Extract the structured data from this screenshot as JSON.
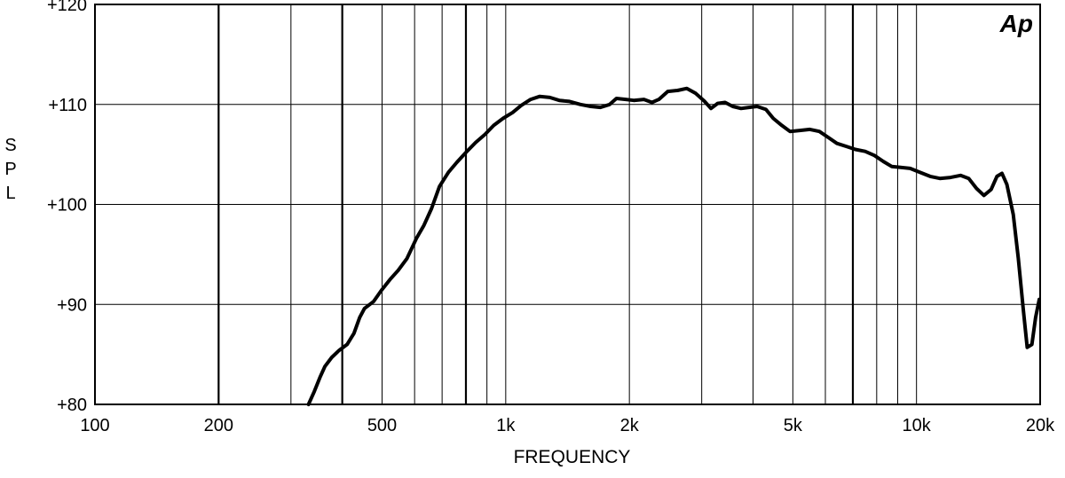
{
  "chart_data": {
    "type": "line",
    "title": "",
    "xlabel": "FREQUENCY",
    "ylabel": "SPL",
    "x_scale": "log",
    "xlim": [
      100,
      20000
    ],
    "ylim": [
      80,
      120
    ],
    "x_ticks": [
      {
        "value": 100,
        "label": "100"
      },
      {
        "value": 200,
        "label": "200"
      },
      {
        "value": 500,
        "label": "500"
      },
      {
        "value": 1000,
        "label": "1k"
      },
      {
        "value": 2000,
        "label": "2k"
      },
      {
        "value": 5000,
        "label": "5k"
      },
      {
        "value": 10000,
        "label": "10k"
      },
      {
        "value": 20000,
        "label": "20k"
      }
    ],
    "y_ticks": [
      {
        "value": 120,
        "label": "+120"
      },
      {
        "value": 110,
        "label": "+110"
      },
      {
        "value": 100,
        "label": "+100"
      },
      {
        "value": 90,
        "label": "+90"
      },
      {
        "value": 80,
        "label": "+80"
      }
    ],
    "x_gridlines": [
      200,
      300,
      400,
      500,
      600,
      700,
      800,
      900,
      1000,
      2000,
      3000,
      4000,
      5000,
      6000,
      7000,
      8000,
      9000,
      10000
    ],
    "x_gridlines_bold": [
      200,
      400,
      800,
      7000
    ],
    "y_gridlines": [
      90,
      100,
      110
    ],
    "grid": true,
    "logo": "Ap",
    "series": [
      {
        "color": "#000000",
        "points": [
          [
            331,
            80.0
          ],
          [
            342,
            81.3
          ],
          [
            353,
            82.7
          ],
          [
            363,
            83.8
          ],
          [
            377,
            84.7
          ],
          [
            393,
            85.4
          ],
          [
            411,
            86.0
          ],
          [
            427,
            87.1
          ],
          [
            441,
            88.7
          ],
          [
            453,
            89.6
          ],
          [
            477,
            90.3
          ],
          [
            498,
            91.4
          ],
          [
            523,
            92.5
          ],
          [
            547,
            93.4
          ],
          [
            575,
            94.6
          ],
          [
            606,
            96.6
          ],
          [
            632,
            97.9
          ],
          [
            660,
            99.6
          ],
          [
            690,
            101.8
          ],
          [
            725,
            103.2
          ],
          [
            760,
            104.2
          ],
          [
            800,
            105.2
          ],
          [
            845,
            106.2
          ],
          [
            890,
            107.0
          ],
          [
            935,
            107.9
          ],
          [
            985,
            108.6
          ],
          [
            1040,
            109.2
          ],
          [
            1090,
            109.9
          ],
          [
            1150,
            110.5
          ],
          [
            1210,
            110.8
          ],
          [
            1280,
            110.7
          ],
          [
            1350,
            110.4
          ],
          [
            1430,
            110.3
          ],
          [
            1520,
            110.0
          ],
          [
            1610,
            109.8
          ],
          [
            1700,
            109.7
          ],
          [
            1790,
            110.0
          ],
          [
            1860,
            110.6
          ],
          [
            1960,
            110.5
          ],
          [
            2050,
            110.4
          ],
          [
            2170,
            110.5
          ],
          [
            2270,
            110.2
          ],
          [
            2360,
            110.5
          ],
          [
            2480,
            111.3
          ],
          [
            2620,
            111.4
          ],
          [
            2760,
            111.6
          ],
          [
            2900,
            111.1
          ],
          [
            3050,
            110.3
          ],
          [
            3160,
            109.6
          ],
          [
            3280,
            110.1
          ],
          [
            3420,
            110.2
          ],
          [
            3570,
            109.8
          ],
          [
            3740,
            109.6
          ],
          [
            3910,
            109.7
          ],
          [
            4090,
            109.8
          ],
          [
            4300,
            109.5
          ],
          [
            4480,
            108.6
          ],
          [
            4700,
            107.9
          ],
          [
            4920,
            107.3
          ],
          [
            5200,
            107.4
          ],
          [
            5500,
            107.5
          ],
          [
            5800,
            107.3
          ],
          [
            6100,
            106.7
          ],
          [
            6400,
            106.1
          ],
          [
            6750,
            105.8
          ],
          [
            7100,
            105.5
          ],
          [
            7500,
            105.3
          ],
          [
            7900,
            104.9
          ],
          [
            8300,
            104.3
          ],
          [
            8700,
            103.8
          ],
          [
            9150,
            103.7
          ],
          [
            9650,
            103.6
          ],
          [
            10200,
            103.2
          ],
          [
            10800,
            102.8
          ],
          [
            11400,
            102.6
          ],
          [
            12100,
            102.7
          ],
          [
            12800,
            102.9
          ],
          [
            13400,
            102.6
          ],
          [
            14000,
            101.6
          ],
          [
            14600,
            100.9
          ],
          [
            15200,
            101.5
          ],
          [
            15700,
            102.8
          ],
          [
            16150,
            103.1
          ],
          [
            16600,
            102.0
          ],
          [
            17200,
            99.0
          ],
          [
            17700,
            94.6
          ],
          [
            18200,
            89.5
          ],
          [
            18600,
            85.7
          ],
          [
            19100,
            86.0
          ],
          [
            19500,
            88.7
          ],
          [
            19900,
            90.5
          ]
        ]
      }
    ]
  }
}
